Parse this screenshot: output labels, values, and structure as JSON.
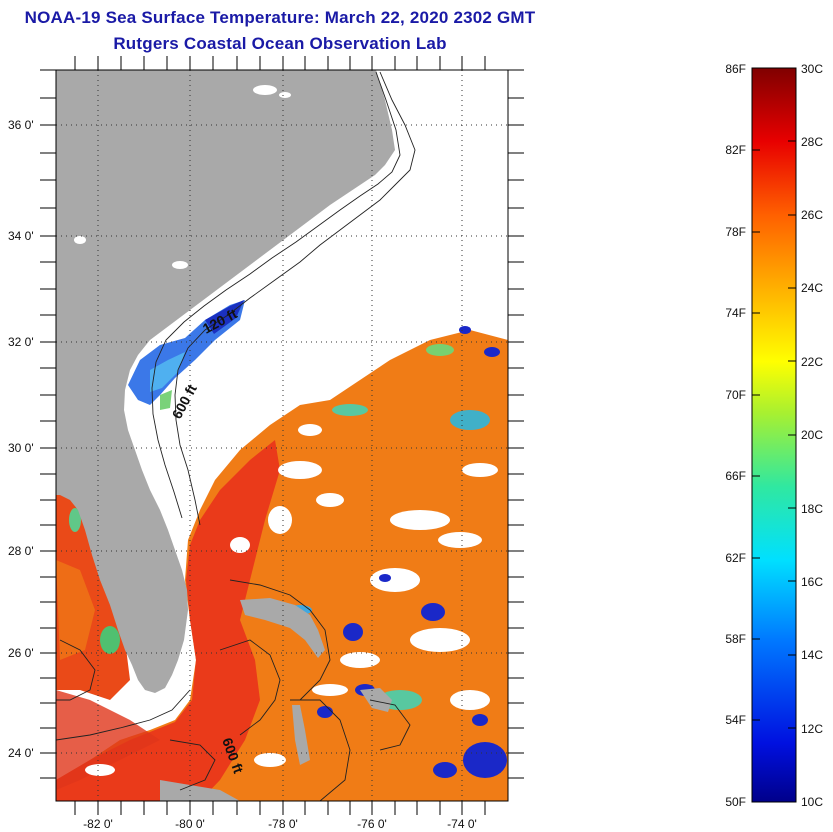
{
  "title": {
    "line1": "NOAA-19 Sea Surface Temperature:  March 22, 2020 2302 GMT",
    "line2": "Rutgers Coastal Ocean Observation Lab"
  },
  "axes": {
    "lat_labels": [
      "36 0'",
      "34 0'",
      "32 0'",
      "30 0'",
      "28 0'",
      "26 0'",
      "24 0'"
    ],
    "lon_labels": [
      "-82 0'",
      "-80 0'",
      "-78 0'",
      "-76 0'",
      "-74 0'"
    ]
  },
  "contour_labels": [
    "120 ft",
    "600 ft",
    "600 ft"
  ],
  "colorbar": {
    "f_labels": [
      "86F",
      "82F",
      "78F",
      "74F",
      "70F",
      "66F",
      "62F",
      "58F",
      "54F",
      "50F"
    ],
    "c_labels": [
      "30C",
      "28C",
      "26C",
      "24C",
      "22C",
      "20C",
      "18C",
      "16C",
      "14C",
      "12C",
      "10C"
    ],
    "min_c": 10,
    "max_c": 30
  },
  "colors": {
    "land": "#a9a9a9",
    "cloud": "#ffffff",
    "warm_ocean": "#f07a14",
    "gulf_stream": "#e8381a",
    "cold_water": "#1838c8",
    "title": "#1a1aa6"
  }
}
